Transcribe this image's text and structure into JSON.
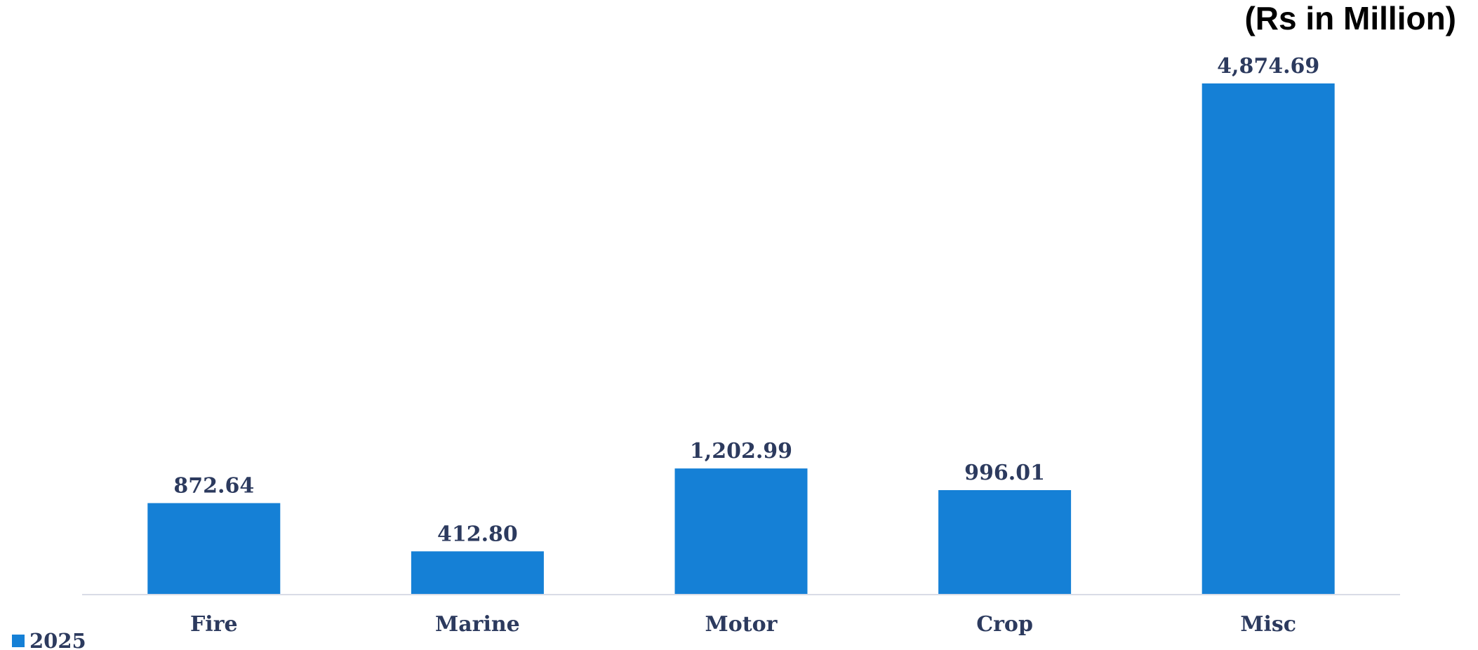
{
  "chart_data": {
    "type": "bar",
    "unit_label": "(Rs in Million)",
    "categories": [
      "Fire",
      "Marine",
      "Motor",
      "Crop",
      "Misc"
    ],
    "series": [
      {
        "name": "2025",
        "values": [
          872.64,
          412.8,
          1202.99,
          996.01,
          4874.69
        ],
        "value_labels": [
          "872.64",
          "412.80",
          "1,202.99",
          "996.01",
          "4,874.69"
        ],
        "color": "#1580d6"
      }
    ],
    "ylim": [
      0,
      5100
    ],
    "grid": false,
    "legend_position": "bottom-left",
    "axis_color": "#d9dce6",
    "text_color": "#2c3a5e"
  }
}
